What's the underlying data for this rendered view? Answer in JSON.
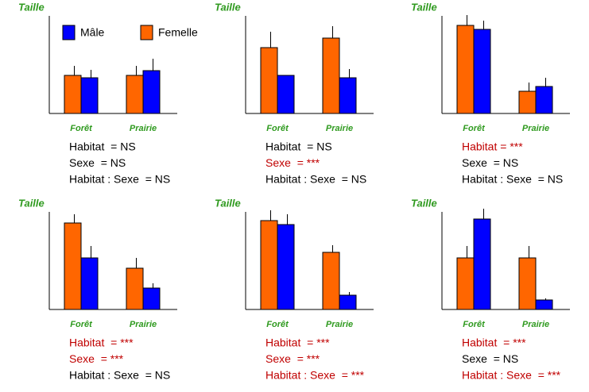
{
  "chart_data": [
    {
      "type": "bar",
      "y_label": "Taille",
      "categories": [
        "Forêt",
        "Prairie"
      ],
      "ylim": [
        0,
        123
      ],
      "series": [
        {
          "name": "Mâle",
          "color": "#0000ff",
          "values": [
            45,
            54
          ],
          "errors": [
            10,
            15
          ]
        },
        {
          "name": "Femelle",
          "color": "#ff6600",
          "values": [
            48,
            48
          ],
          "errors": [
            12,
            12
          ]
        }
      ],
      "annotations": [
        {
          "text": "Habitat  = NS",
          "color": "#000000"
        },
        {
          "text": "Sexe  = NS",
          "color": "#000000"
        },
        {
          "text": "Habitat : Sexe  = NS",
          "color": "#000000"
        }
      ]
    },
    {
      "type": "bar",
      "y_label": "Taille",
      "categories": [
        "Forêt",
        "Prairie"
      ],
      "ylim": [
        0,
        123
      ],
      "series": [
        {
          "color": "#0000ff",
          "values": [
            48,
            45
          ],
          "errors": [
            null,
            11
          ]
        },
        {
          "color": "#ff6600",
          "values": [
            83,
            95
          ],
          "errors": [
            20,
            15
          ]
        }
      ],
      "annotations": [
        {
          "text": "Habitat  = NS",
          "color": "#000000"
        },
        {
          "text": "Sexe  = ***",
          "color": "#c00000"
        },
        {
          "text": "Habitat : Sexe  = NS",
          "color": "#000000"
        }
      ]
    },
    {
      "type": "bar",
      "y_label": "Taille",
      "categories": [
        "Forêt",
        "Prairie"
      ],
      "ylim": [
        0,
        123
      ],
      "series": [
        {
          "color": "#0000ff",
          "values": [
            106,
            34
          ],
          "errors": [
            11,
            11
          ]
        },
        {
          "color": "#ff6600",
          "values": [
            111,
            28
          ],
          "errors": [
            13,
            11
          ]
        }
      ],
      "annotations": [
        {
          "text": "Habitat = ***",
          "color": "#c00000"
        },
        {
          "text": "Sexe  = NS",
          "color": "#000000"
        },
        {
          "text": "Habitat : Sexe  = NS",
          "color": "#000000"
        }
      ]
    },
    {
      "type": "bar",
      "y_label": "Taille",
      "categories": [
        "Forêt",
        "Prairie"
      ],
      "ylim": [
        0,
        123
      ],
      "series": [
        {
          "color": "#0000ff",
          "values": [
            65,
            27
          ],
          "errors": [
            15,
            6
          ]
        },
        {
          "color": "#ff6600",
          "values": [
            109,
            52
          ],
          "errors": [
            11,
            13
          ]
        }
      ],
      "annotations": [
        {
          "text": "Habitat  = ***",
          "color": "#c00000"
        },
        {
          "text": "Sexe  = ***",
          "color": "#c00000"
        },
        {
          "text": "Habitat : Sexe  = NS",
          "color": "#000000"
        }
      ]
    },
    {
      "type": "bar",
      "y_label": "Taille",
      "categories": [
        "Forêt",
        "Prairie"
      ],
      "ylim": [
        0,
        123
      ],
      "series": [
        {
          "color": "#0000ff",
          "values": [
            107,
            18
          ],
          "errors": [
            13,
            4
          ]
        },
        {
          "color": "#ff6600",
          "values": [
            112,
            72
          ],
          "errors": [
            13,
            9
          ]
        }
      ],
      "annotations": [
        {
          "text": "Habitat  = ***",
          "color": "#c00000"
        },
        {
          "text": "Sexe  = ***",
          "color": "#c00000"
        },
        {
          "text": "Habitat : Sexe  = ***",
          "color": "#c00000"
        }
      ]
    },
    {
      "type": "bar",
      "y_label": "Taille",
      "categories": [
        "Forêt",
        "Prairie"
      ],
      "ylim": [
        0,
        123
      ],
      "series": [
        {
          "color": "#0000ff",
          "values": [
            114,
            12
          ],
          "errors": [
            13,
            2
          ]
        },
        {
          "color": "#ff6600",
          "values": [
            65,
            65
          ],
          "errors": [
            15,
            15
          ]
        }
      ],
      "annotations": [
        {
          "text": "Habitat  = ***",
          "color": "#c00000"
        },
        {
          "text": "Sexe  = NS",
          "color": "#000000"
        },
        {
          "text": "Habitat : Sexe  = ***",
          "color": "#c00000"
        }
      ]
    }
  ]
}
